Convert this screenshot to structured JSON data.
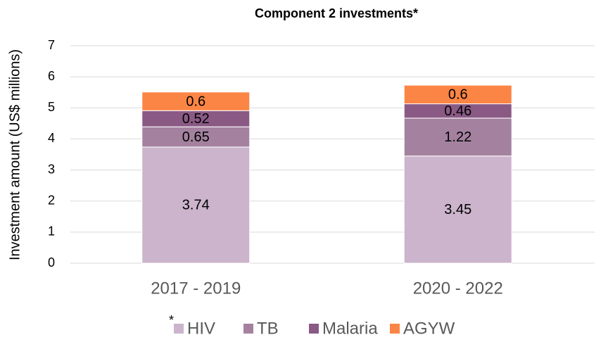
{
  "chart_data": {
    "type": "stacked_bar",
    "title": "Component 2 investments*",
    "y_label": "Investment amount (US$ millions)",
    "categories": [
      "2017 - 2019",
      "2020 - 2022"
    ],
    "series": [
      {
        "name": "HIV",
        "color": "#cbb4cc",
        "values": [
          3.74,
          3.45
        ]
      },
      {
        "name": "TB",
        "color": "#a4829f",
        "values": [
          0.65,
          1.22
        ]
      },
      {
        "name": "Malaria",
        "color": "#8a5a85",
        "values": [
          0.52,
          0.46
        ]
      },
      {
        "name": "AGYW",
        "color": "#fb8544",
        "values": [
          0.6,
          0.6
        ]
      }
    ],
    "ylim": [
      0,
      7
    ],
    "yticks": [
      0,
      1,
      2,
      3,
      4,
      5,
      6,
      7
    ],
    "grid": true,
    "legend_position": "bottom",
    "legend_note": "*"
  }
}
